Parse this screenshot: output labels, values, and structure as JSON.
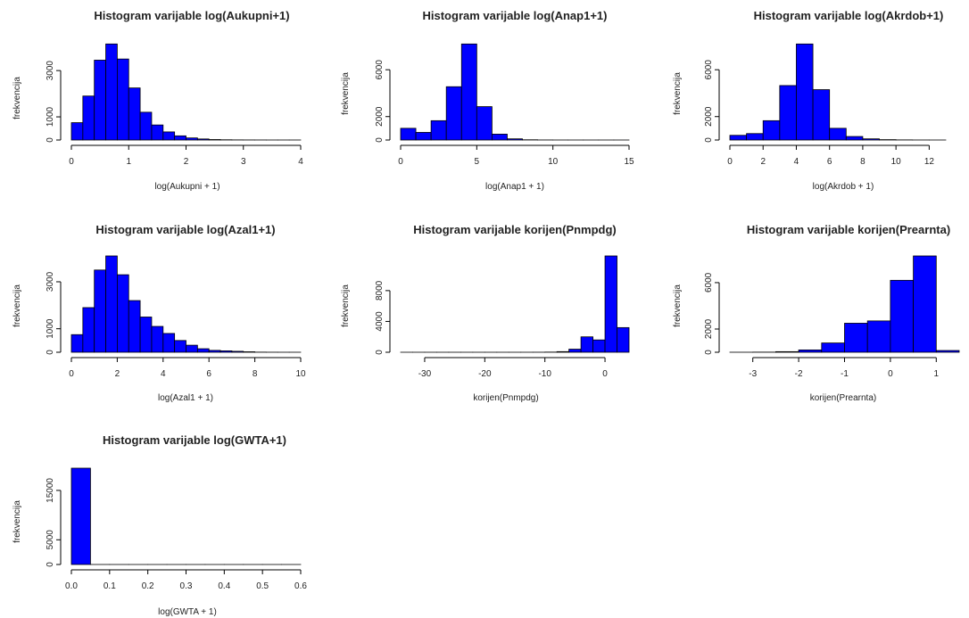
{
  "colors": {
    "bar_fill": "#0000ff",
    "bar_stroke": "#000000",
    "axis": "#000000"
  },
  "chart_data": [
    {
      "type": "bar",
      "title": "Histogram varijable log(Aukupni+1)",
      "xlabel": "log(Aukupni + 1)",
      "ylabel": "frekvencija",
      "xlim": [
        0,
        4
      ],
      "ylim": [
        0,
        4200
      ],
      "xticks": [
        0,
        1,
        2,
        3,
        4
      ],
      "yticks": [
        0,
        1000,
        3000
      ],
      "bin_edges": [
        0,
        0.2,
        0.4,
        0.6,
        0.8,
        1.0,
        1.2,
        1.4,
        1.6,
        1.8,
        2.0,
        2.2,
        2.4,
        2.6,
        2.8,
        3.0,
        3.2,
        3.4,
        3.6,
        3.8,
        4.0
      ],
      "values": [
        750,
        1900,
        3450,
        4150,
        3500,
        2250,
        1200,
        650,
        350,
        180,
        90,
        45,
        20,
        10,
        5,
        3,
        2,
        1,
        1,
        1
      ]
    },
    {
      "type": "bar",
      "title": "Histogram varijable log(Anap1+1)",
      "xlabel": "log(Anap1 + 1)",
      "ylabel": "frekvencija",
      "xlim": [
        0,
        15
      ],
      "ylim": [
        0,
        8300
      ],
      "xticks": [
        0,
        5,
        10,
        15
      ],
      "yticks": [
        0,
        2000,
        6000
      ],
      "bin_edges": [
        0,
        1,
        2,
        3,
        4,
        5,
        6,
        7,
        8,
        9,
        10,
        11,
        12,
        13,
        14,
        15
      ],
      "values": [
        1000,
        650,
        1650,
        4550,
        8200,
        2850,
        500,
        100,
        20,
        5,
        2,
        1,
        1,
        1,
        1
      ]
    },
    {
      "type": "bar",
      "title": "Histogram varijable log(Akrdob+1)",
      "xlabel": "log(Akrdob + 1)",
      "ylabel": "frekvencija",
      "xlim": [
        0,
        13
      ],
      "ylim": [
        0,
        8300
      ],
      "xticks": [
        0,
        2,
        4,
        6,
        8,
        10,
        12
      ],
      "yticks": [
        0,
        2000,
        6000
      ],
      "bin_edges": [
        0,
        1,
        2,
        3,
        4,
        5,
        6,
        7,
        8,
        9,
        10,
        11,
        12,
        13
      ],
      "values": [
        400,
        550,
        1650,
        4650,
        8200,
        4300,
        1000,
        300,
        100,
        30,
        10,
        3,
        1
      ]
    },
    {
      "type": "bar",
      "title": "Histogram varijable log(Azal1+1)",
      "xlabel": "log(Azal1 + 1)",
      "ylabel": "frekvencija",
      "xlim": [
        0,
        10
      ],
      "ylim": [
        0,
        4100
      ],
      "xticks": [
        0,
        2,
        4,
        6,
        8,
        10
      ],
      "yticks": [
        0,
        1000,
        3000
      ],
      "bin_edges": [
        0,
        0.5,
        1.0,
        1.5,
        2.0,
        2.5,
        3.0,
        3.5,
        4.0,
        4.5,
        5.0,
        5.5,
        6.0,
        6.5,
        7.0,
        7.5,
        8.0,
        8.5,
        9.0,
        9.5,
        10.0
      ],
      "values": [
        750,
        1900,
        3500,
        4100,
        3300,
        2200,
        1500,
        1100,
        800,
        500,
        300,
        150,
        80,
        60,
        40,
        20,
        5,
        2,
        1,
        1
      ]
    },
    {
      "type": "bar",
      "title": "Histogram varijable korijen(Pnmpdg)",
      "xlabel": "korijen(Pnmpdg)",
      "ylabel": "frekvencija",
      "xlim": [
        -34,
        4
      ],
      "ylim": [
        0,
        12500
      ],
      "xticks": [
        -30,
        -20,
        -10,
        0
      ],
      "yticks": [
        0,
        4000,
        8000
      ],
      "bin_edges": [
        -34,
        -32,
        -30,
        -28,
        -26,
        -24,
        -22,
        -20,
        -18,
        -16,
        -14,
        -12,
        -10,
        -8,
        -6,
        -4,
        -2,
        0,
        2,
        4
      ],
      "values": [
        1,
        1,
        1,
        1,
        1,
        1,
        1,
        1,
        1,
        1,
        2,
        5,
        20,
        80,
        400,
        2000,
        1600,
        12500,
        3200
      ]
    },
    {
      "type": "bar",
      "title": "Histogram varijable korijen(Prearnta)",
      "xlabel": "korijen(Prearnta)",
      "ylabel": "frekvencija",
      "xlim": [
        -3.5,
        1.5
      ],
      "ylim": [
        0,
        8300
      ],
      "xticks": [
        -3,
        -2,
        -1,
        0,
        1
      ],
      "yticks": [
        0,
        2000,
        6000
      ],
      "bin_edges": [
        -3.5,
        -3.0,
        -2.5,
        -2.0,
        -1.5,
        -1.0,
        -0.5,
        0.0,
        0.5,
        1.0,
        1.5
      ],
      "values": [
        2,
        10,
        50,
        200,
        800,
        2500,
        2700,
        6200,
        8300,
        150
      ]
    },
    {
      "type": "bar",
      "title": "Histogram varijable log(GWTA+1)",
      "xlabel": "log(GWTA + 1)",
      "ylabel": "frekvencija",
      "xlim": [
        0,
        0.6
      ],
      "ylim": [
        0,
        19500
      ],
      "xticks": [
        0.0,
        0.1,
        0.2,
        0.3,
        0.4,
        0.5,
        0.6
      ],
      "yticks": [
        0,
        5000,
        15000
      ],
      "xtick_labels": [
        "0.0",
        "0.1",
        "0.2",
        "0.3",
        "0.4",
        "0.5",
        "0.6"
      ],
      "bin_edges": [
        0,
        0.05,
        0.1,
        0.15,
        0.2,
        0.25,
        0.3,
        0.35,
        0.4,
        0.45,
        0.5,
        0.55,
        0.6
      ],
      "values": [
        19500,
        3,
        2,
        1,
        1,
        1,
        1,
        1,
        1,
        1,
        1,
        1
      ]
    }
  ]
}
